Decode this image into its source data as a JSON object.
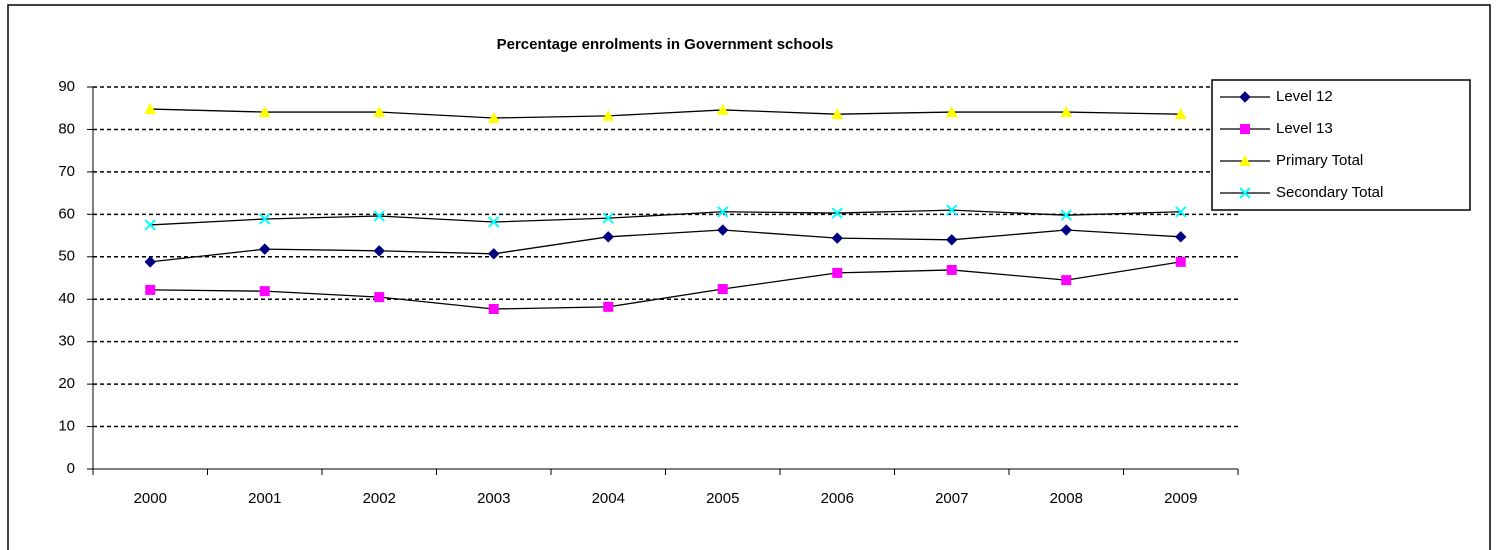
{
  "chart_data": {
    "type": "line",
    "title": "Percentage enrolments in Government schools",
    "categories": [
      "2000",
      "2001",
      "2002",
      "2003",
      "2004",
      "2005",
      "2006",
      "2007",
      "2008",
      "2009"
    ],
    "series": [
      {
        "name": "Level 12",
        "color": "#000080",
        "marker": "diamond",
        "values": [
          48.8,
          51.8,
          51.4,
          50.7,
          54.7,
          56.3,
          54.4,
          54.0,
          56.3,
          54.7
        ]
      },
      {
        "name": "Level 13",
        "color": "#ff00ff",
        "marker": "square",
        "values": [
          42.2,
          41.9,
          40.5,
          37.7,
          38.2,
          42.4,
          46.2,
          46.9,
          44.5,
          48.8
        ]
      },
      {
        "name": "Primary Total",
        "color": "#ffff00",
        "marker": "triangle",
        "values": [
          84.8,
          84.1,
          84.1,
          82.7,
          83.2,
          84.6,
          83.6,
          84.1,
          84.1,
          83.6
        ]
      },
      {
        "name": "Secondary Total",
        "color": "#00ffff",
        "marker": "x",
        "values": [
          57.5,
          58.9,
          59.6,
          58.2,
          59.1,
          60.6,
          60.3,
          61.0,
          59.8,
          60.6
        ]
      }
    ],
    "line_color": "#000000",
    "ylim": [
      0,
      90
    ],
    "yticks": [
      0,
      10,
      20,
      30,
      40,
      50,
      60,
      70,
      80,
      90
    ],
    "grid": true,
    "legend": "right"
  }
}
